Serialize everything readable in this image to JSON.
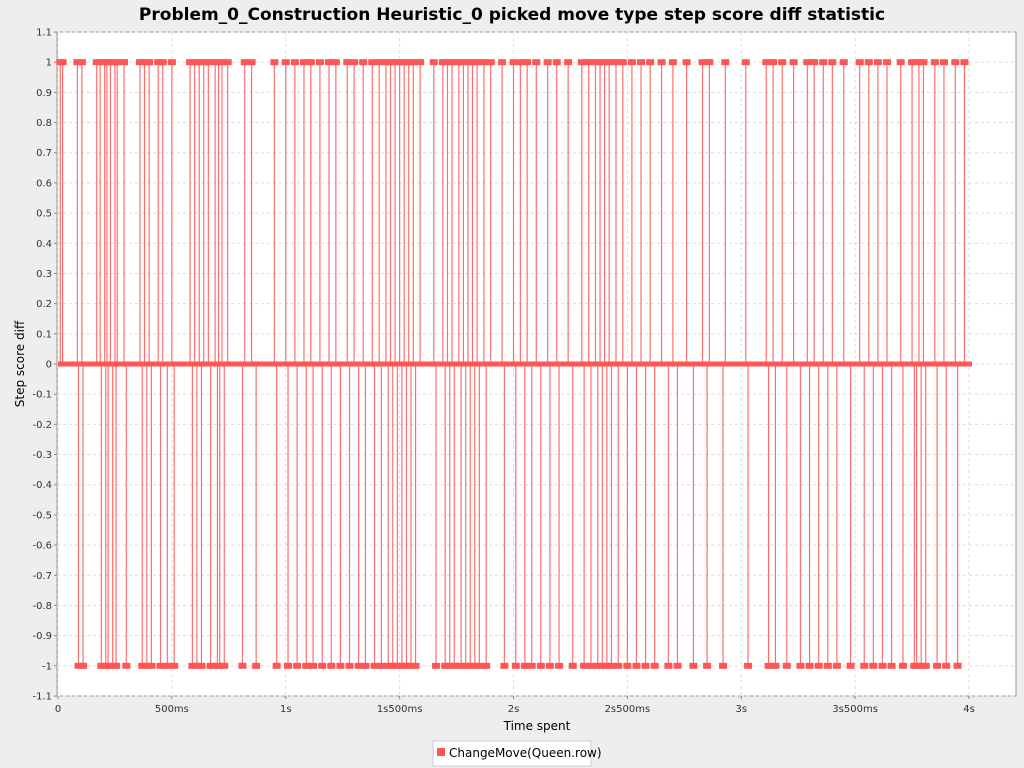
{
  "chart_data": {
    "type": "line",
    "title": "Problem_0_Construction Heuristic_0 picked move type step score diff statistic",
    "xlabel": "Time spent",
    "ylabel": "Step score diff",
    "xlim": [
      0,
      4000
    ],
    "ylim": [
      -1.1,
      1.1
    ],
    "x_ticks": [
      {
        "value": 0,
        "label": "0"
      },
      {
        "value": 500,
        "label": "500ms"
      },
      {
        "value": 1000,
        "label": "1s"
      },
      {
        "value": 1500,
        "label": "1s500ms"
      },
      {
        "value": 2000,
        "label": "2s"
      },
      {
        "value": 2500,
        "label": "2s500ms"
      },
      {
        "value": 3000,
        "label": "3s"
      },
      {
        "value": 3500,
        "label": "3s500ms"
      },
      {
        "value": 4000,
        "label": "4s"
      }
    ],
    "y_ticks": [
      {
        "value": 1.1,
        "label": "1.1"
      },
      {
        "value": 1.0,
        "label": "1"
      },
      {
        "value": 0.9,
        "label": "0.9"
      },
      {
        "value": 0.8,
        "label": "0.8"
      },
      {
        "value": 0.7,
        "label": "0.7"
      },
      {
        "value": 0.6,
        "label": "0.6"
      },
      {
        "value": 0.5,
        "label": "0.5"
      },
      {
        "value": 0.4,
        "label": "0.4"
      },
      {
        "value": 0.3,
        "label": "0.3"
      },
      {
        "value": 0.2,
        "label": "0.2"
      },
      {
        "value": 0.1,
        "label": "0.1"
      },
      {
        "value": 0,
        "label": "0"
      },
      {
        "value": -0.1,
        "label": "-0.1"
      },
      {
        "value": -0.2,
        "label": "-0.2"
      },
      {
        "value": -0.3,
        "label": "-0.3"
      },
      {
        "value": -0.4,
        "label": "-0.4"
      },
      {
        "value": -0.5,
        "label": "-0.5"
      },
      {
        "value": -0.6,
        "label": "-0.6"
      },
      {
        "value": -0.7,
        "label": "-0.7"
      },
      {
        "value": -0.8,
        "label": "-0.8"
      },
      {
        "value": -0.9,
        "label": "-0.9"
      },
      {
        "value": -1.0,
        "label": "-1"
      },
      {
        "value": -1.1,
        "label": "-1.1"
      }
    ],
    "grid": true,
    "legend_position": "bottom-center",
    "series": [
      {
        "name": "ChangeMove(Queen.row)",
        "color": "#ff5555",
        "x_start": 0,
        "x_end": 4000,
        "baseline": 0,
        "positive_spikes_ms": [
          10,
          20,
          85,
          105,
          170,
          185,
          205,
          215,
          230,
          250,
          260,
          290,
          360,
          380,
          400,
          440,
          460,
          500,
          580,
          600,
          620,
          640,
          660,
          690,
          705,
          720,
          745,
          820,
          850,
          950,
          1000,
          1040,
          1080,
          1110,
          1150,
          1190,
          1220,
          1270,
          1300,
          1340,
          1380,
          1410,
          1440,
          1460,
          1480,
          1500,
          1520,
          1540,
          1560,
          1590,
          1650,
          1690,
          1710,
          1730,
          1760,
          1780,
          1800,
          1820,
          1840,
          1870,
          1900,
          1950,
          2000,
          2030,
          2060,
          2100,
          2150,
          2190,
          2240,
          2300,
          2330,
          2360,
          2380,
          2400,
          2420,
          2450,
          2480,
          2520,
          2560,
          2600,
          2650,
          2700,
          2760,
          2830,
          2860,
          2930,
          3020,
          3110,
          3140,
          3180,
          3230,
          3290,
          3320,
          3360,
          3400,
          3450,
          3520,
          3560,
          3600,
          3640,
          3700,
          3750,
          3780,
          3800,
          3850,
          3890,
          3940,
          3980
        ],
        "negative_spikes_ms": [
          90,
          110,
          190,
          210,
          220,
          240,
          255,
          300,
          370,
          390,
          410,
          450,
          480,
          510,
          590,
          610,
          630,
          670,
          700,
          710,
          730,
          810,
          870,
          960,
          1010,
          1050,
          1090,
          1120,
          1160,
          1200,
          1240,
          1280,
          1320,
          1350,
          1390,
          1420,
          1450,
          1470,
          1490,
          1510,
          1530,
          1550,
          1570,
          1660,
          1700,
          1720,
          1740,
          1770,
          1790,
          1810,
          1830,
          1850,
          1880,
          1960,
          2010,
          2050,
          2080,
          2120,
          2160,
          2200,
          2260,
          2310,
          2340,
          2370,
          2390,
          2410,
          2430,
          2460,
          2500,
          2540,
          2580,
          2620,
          2680,
          2720,
          2790,
          2850,
          2920,
          3030,
          3120,
          3150,
          3200,
          3260,
          3300,
          3340,
          3380,
          3420,
          3480,
          3540,
          3580,
          3620,
          3660,
          3710,
          3760,
          3770,
          3790,
          3810,
          3860,
          3900,
          3950
        ]
      }
    ]
  }
}
